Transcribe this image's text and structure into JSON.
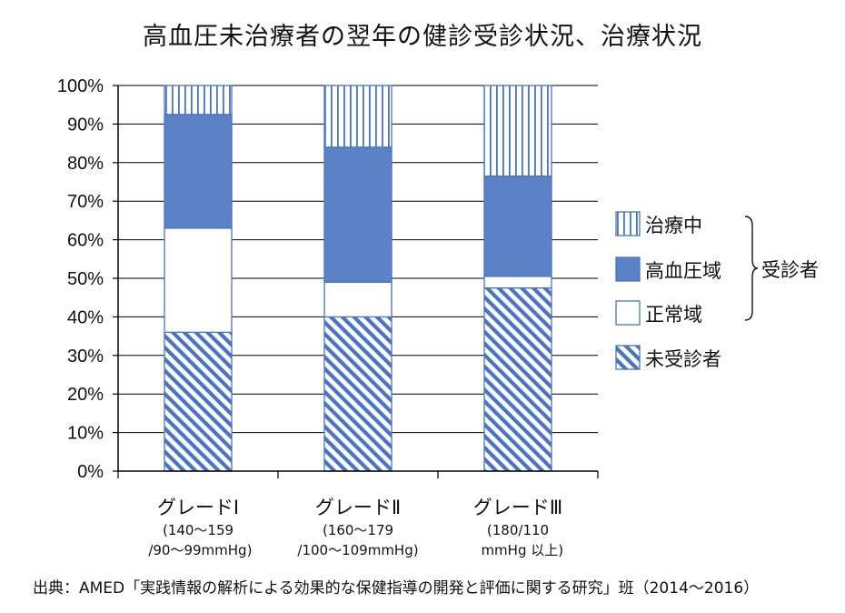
{
  "chart_data": {
    "type": "bar",
    "stacked": true,
    "normalized": true,
    "title": "高血圧未治療者の翌年の健診受診状況、治療状況",
    "categories": [
      "グレードⅠ",
      "グレードⅡ",
      "グレードⅢ"
    ],
    "category_ranges": [
      "(140～159\n /90～99mmHg)",
      "(160～179\n/100～109mmHg)",
      "(180/110\n  mmHg 以上)"
    ],
    "series": [
      {
        "name": "未受診者",
        "pattern": "diagonal",
        "values": [
          36,
          40,
          47.5
        ]
      },
      {
        "name": "正常域",
        "pattern": "white",
        "values": [
          27,
          9,
          3
        ]
      },
      {
        "name": "高血圧域",
        "pattern": "solid",
        "values": [
          29.5,
          35,
          26
        ]
      },
      {
        "name": "治療中",
        "pattern": "vertical",
        "values": [
          7.5,
          16,
          23.5
        ]
      }
    ],
    "legend_order": [
      "治療中",
      "高血圧域",
      "正常域",
      "未受診者"
    ],
    "legend_group_label": "受診者",
    "ylim": [
      0,
      100
    ],
    "yticks": [
      "0%",
      "10%",
      "20%",
      "30%",
      "40%",
      "50%",
      "60%",
      "70%",
      "80%",
      "90%",
      "100%"
    ],
    "grid": true,
    "legend_position": "right",
    "colors": {
      "fill": "#5b82c6",
      "pattern": "#4a74bf",
      "axis": "#000000",
      "grid": "#000000"
    },
    "source": "出典：AMED「実践情報の解析による効果的な保健指導の開発と評価に関する研究」班（2014～2016）"
  }
}
